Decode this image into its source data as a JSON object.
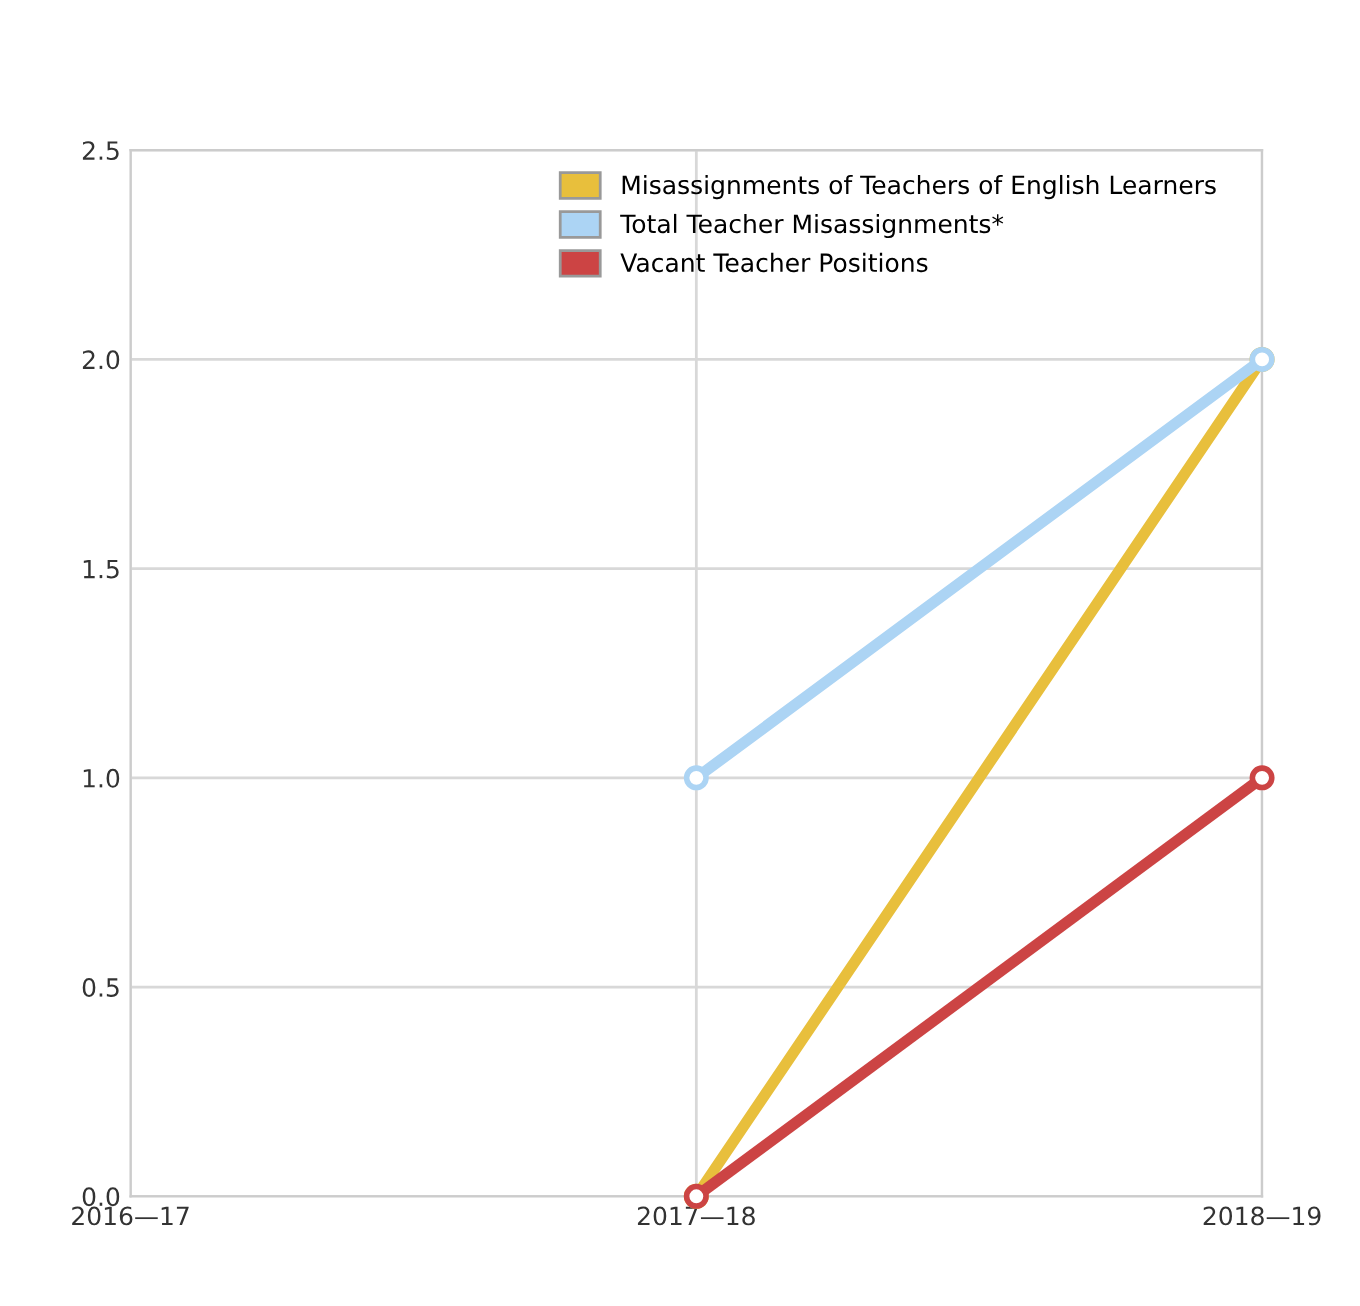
{
  "chart_data": {
    "type": "line",
    "categories": [
      "2016—17",
      "2017—18",
      "2018—19"
    ],
    "series": [
      {
        "name": "Misassignments of Teachers of English Learners",
        "color": "#e8bf3c",
        "values": [
          null,
          0,
          2
        ]
      },
      {
        "name": "Total Teacher Misassignments*",
        "color": "#acd4f4",
        "values": [
          null,
          1,
          2
        ]
      },
      {
        "name": "Vacant Teacher Positions",
        "color": "#cc4444",
        "values": [
          null,
          0,
          1
        ]
      }
    ],
    "ylim": [
      0,
      2.5
    ],
    "yticks": [
      {
        "value": 0,
        "label": "0.0"
      },
      {
        "value": 0.5,
        "label": "0.5"
      },
      {
        "value": 1,
        "label": "1.0"
      },
      {
        "value": 1.5,
        "label": "1.5"
      },
      {
        "value": 2,
        "label": "2.0"
      },
      {
        "value": 2.5,
        "label": "2.5"
      }
    ],
    "grid": true,
    "legend": "top right",
    "marker": "circle",
    "line_style": "solid"
  }
}
